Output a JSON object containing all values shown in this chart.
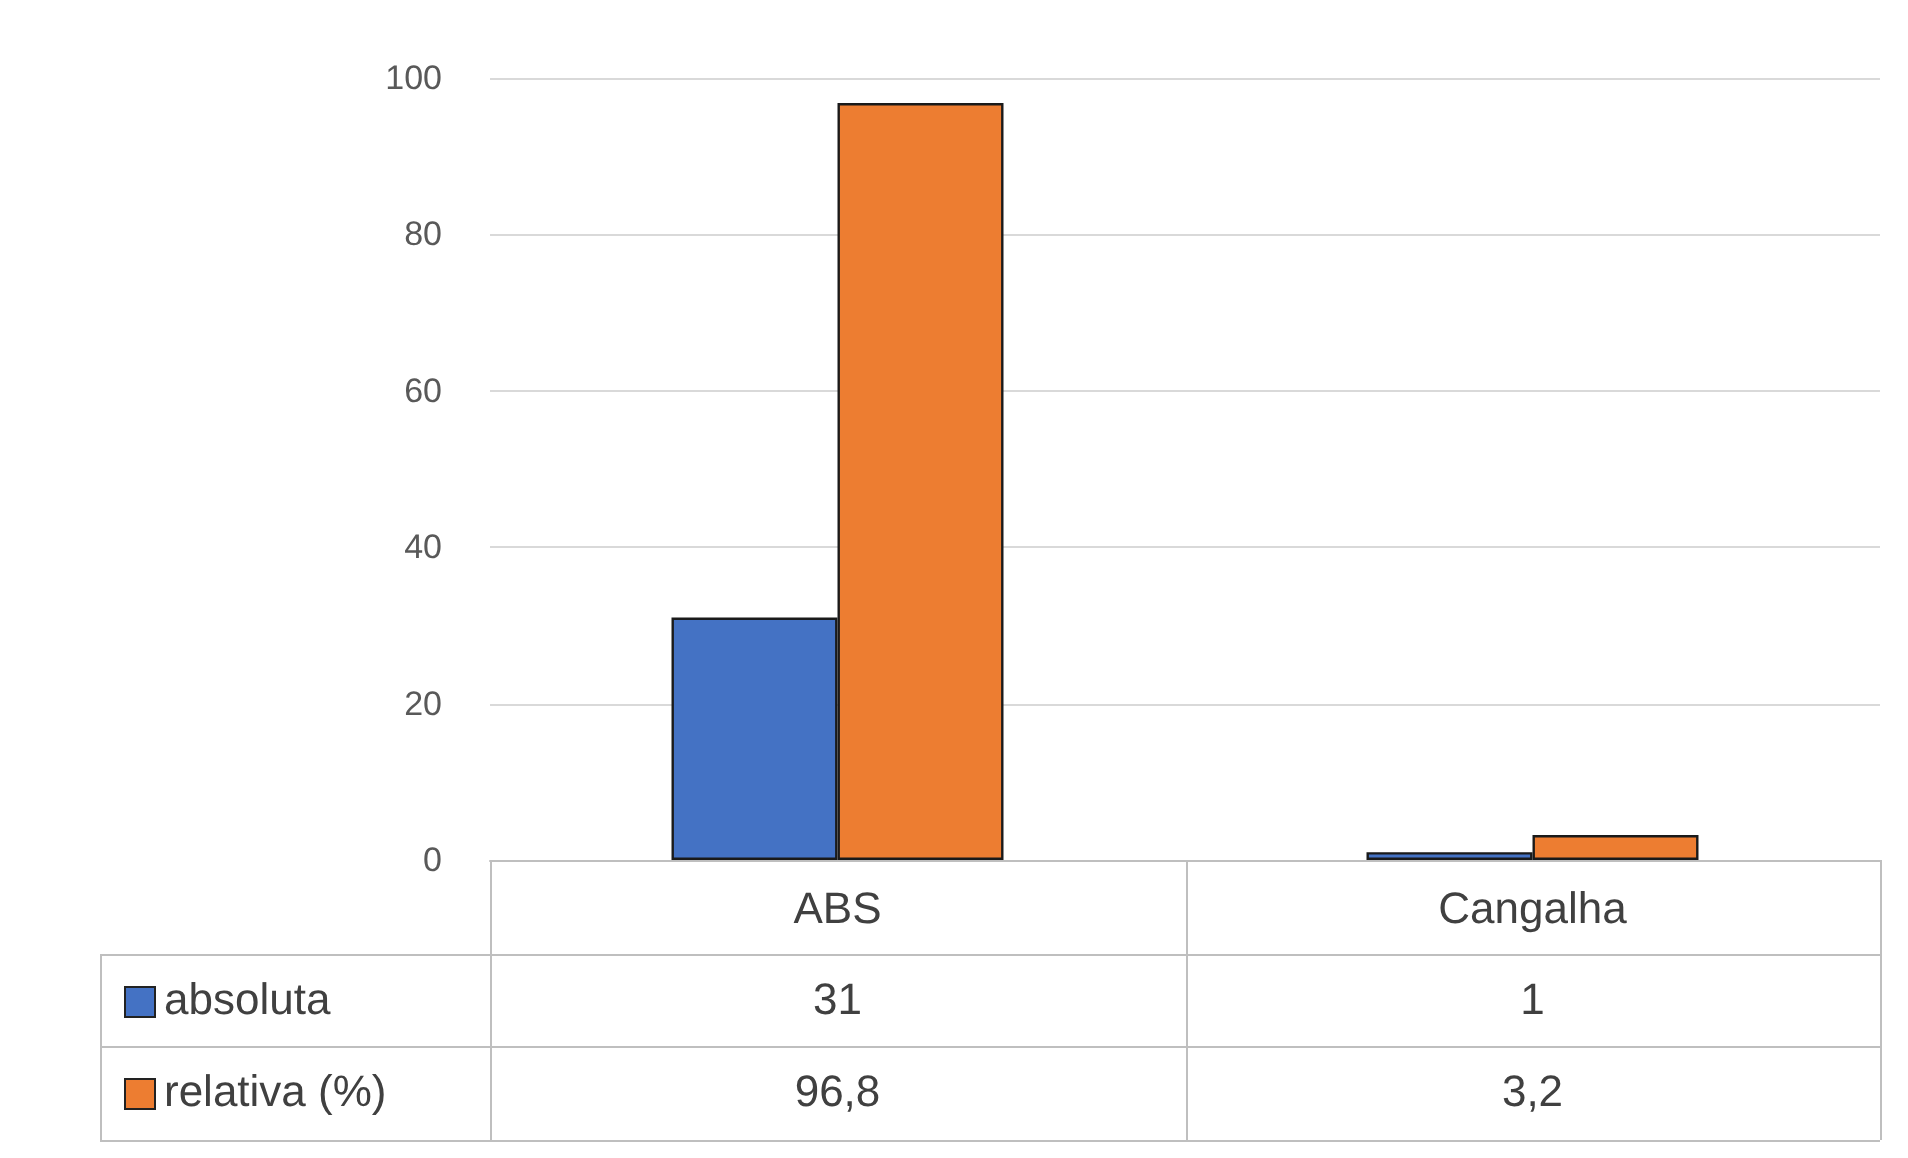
{
  "chart_data": {
    "type": "bar",
    "categories": [
      "ABS",
      "Cangalha"
    ],
    "series": [
      {
        "name": "absoluta",
        "color": "#4472c4",
        "values": [
          31,
          1
        ],
        "value_labels": [
          "31",
          "1"
        ]
      },
      {
        "name": "relativa (%)",
        "color": "#ed7d31",
        "values": [
          96.8,
          3.2
        ],
        "value_labels": [
          "96,8",
          "3,2"
        ]
      }
    ],
    "ylim": [
      0,
      100
    ],
    "yticks": [
      0,
      20,
      40,
      60,
      80,
      100
    ],
    "grid": "y",
    "legend": "bottom"
  }
}
